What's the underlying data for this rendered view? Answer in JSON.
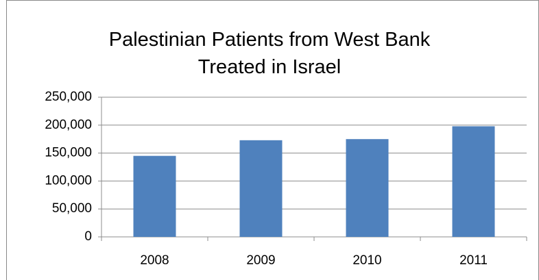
{
  "chart_data": {
    "type": "bar",
    "title": "Palestinian Patients from West Bank Treated in Israel",
    "categories": [
      "2008",
      "2009",
      "2010",
      "2011"
    ],
    "values": [
      145000,
      173000,
      175000,
      198000
    ],
    "color": "#4f81bd",
    "ylim": [
      0,
      250000
    ],
    "yticks": [
      0,
      {
        "value": 50000,
        "label": "50,000"
      },
      {
        "value": 100000,
        "label": "100,000"
      },
      {
        "value": 150000,
        "label": "150,000"
      },
      {
        "value": 200000,
        "label": "200,000"
      },
      {
        "value": 250000,
        "label": "250,000"
      }
    ],
    "grid": true
  }
}
